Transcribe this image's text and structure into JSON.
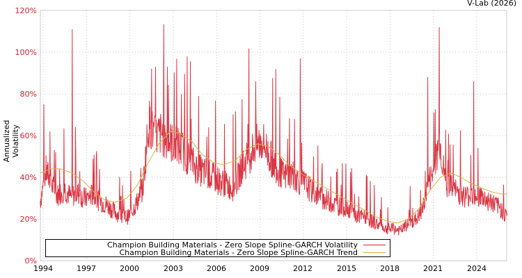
{
  "credit": "V-Lab (2026)",
  "chart_data": {
    "type": "line",
    "title": "",
    "xlabel": "",
    "ylabel": "Annualized Volatility",
    "ylim": [
      0,
      120
    ],
    "xlim": [
      1993.8,
      2026.1
    ],
    "y_ticks": [
      "0%",
      "20%",
      "40%",
      "60%",
      "80%",
      "100%",
      "120%"
    ],
    "y_tick_values": [
      0,
      20,
      40,
      60,
      80,
      100,
      120
    ],
    "x_ticks": [
      "1994",
      "1997",
      "2000",
      "2003",
      "2006",
      "2009",
      "2012",
      "2015",
      "2018",
      "2021",
      "2024"
    ],
    "x_tick_values": [
      1994,
      1997,
      2000,
      2003,
      2006,
      2009,
      2012,
      2015,
      2018,
      2021,
      2024
    ],
    "grid": true,
    "legend_position": "bottom-center inside plot",
    "series": [
      {
        "name": "Champion Building Materials - Zero Slope Spline-GARCH Volatility",
        "color": "#d6202f",
        "x": [
          1993.8,
          1994.2,
          1994.6,
          1995.0,
          1995.5,
          1995.9,
          1996.4,
          1996.9,
          1997.4,
          1997.9,
          1998.4,
          1998.9,
          1999.4,
          1999.9,
          2000.4,
          2000.9,
          2001.3,
          2001.7,
          2002.2,
          2002.7,
          2003.2,
          2003.7,
          2004.2,
          2004.7,
          2005.2,
          2005.7,
          2006.2,
          2006.7,
          2007.2,
          2007.7,
          2008.2,
          2008.7,
          2009.2,
          2009.7,
          2010.2,
          2010.7,
          2011.2,
          2011.7,
          2012.2,
          2012.7,
          2013.2,
          2013.7,
          2014.2,
          2014.7,
          2015.2,
          2015.7,
          2016.2,
          2016.7,
          2017.2,
          2017.7,
          2018.2,
          2018.7,
          2019.2,
          2019.7,
          2020.2,
          2020.7,
          2021.1,
          2021.4,
          2021.8,
          2022.3,
          2022.8,
          2023.3,
          2023.8,
          2024.3,
          2024.8,
          2025.3,
          2025.8,
          2026.1
        ],
        "values": [
          30,
          45,
          38,
          33,
          36,
          32,
          34,
          31,
          33,
          30,
          28,
          25,
          22,
          22,
          28,
          36,
          70,
          62,
          64,
          60,
          58,
          55,
          50,
          46,
          44,
          42,
          40,
          38,
          36,
          46,
          52,
          58,
          60,
          52,
          46,
          42,
          44,
          40,
          38,
          34,
          32,
          30,
          28,
          27,
          26,
          22,
          22,
          20,
          18,
          16,
          16,
          15,
          18,
          20,
          24,
          40,
          45,
          62,
          40,
          36,
          34,
          32,
          34,
          32,
          30,
          28,
          25,
          22
        ],
        "notable_spikes": [
          {
            "x": 1996.0,
            "y": 111
          },
          {
            "x": 2001.5,
            "y": 92
          },
          {
            "x": 2002.6,
            "y": 93
          },
          {
            "x": 2008.7,
            "y": 86
          },
          {
            "x": 2011.8,
            "y": 97
          },
          {
            "x": 2021.4,
            "y": 112
          },
          {
            "x": 2020.6,
            "y": 88
          },
          {
            "x": 2023.8,
            "y": 86
          }
        ]
      },
      {
        "name": "Champion Building Materials - Zero Slope Spline-GARCH Trend",
        "color": "#e0b040",
        "x": [
          1993.8,
          1994.5,
          1995.2,
          1996.0,
          1996.8,
          1997.5,
          1998.3,
          1999.0,
          1999.8,
          2000.5,
          2001.2,
          2002.0,
          2002.8,
          2003.5,
          2004.3,
          2005.0,
          2005.8,
          2006.5,
          2007.3,
          2008.0,
          2008.8,
          2009.5,
          2010.3,
          2011.0,
          2011.8,
          2012.5,
          2013.3,
          2014.0,
          2014.8,
          2015.5,
          2016.3,
          2017.0,
          2017.8,
          2018.5,
          2019.3,
          2020.0,
          2020.8,
          2021.5,
          2022.2,
          2022.9,
          2023.6,
          2024.3,
          2025.0,
          2025.7,
          2026.1
        ],
        "values": [
          42,
          44,
          44,
          42,
          38,
          33,
          29,
          28,
          30,
          36,
          46,
          56,
          62,
          61,
          57,
          51,
          47,
          46,
          48,
          53,
          56,
          55,
          51,
          46,
          42,
          39,
          36,
          33,
          30,
          27,
          24,
          21,
          19,
          18,
          20,
          25,
          34,
          40,
          42,
          40,
          37,
          35,
          33,
          32,
          32
        ]
      }
    ]
  }
}
